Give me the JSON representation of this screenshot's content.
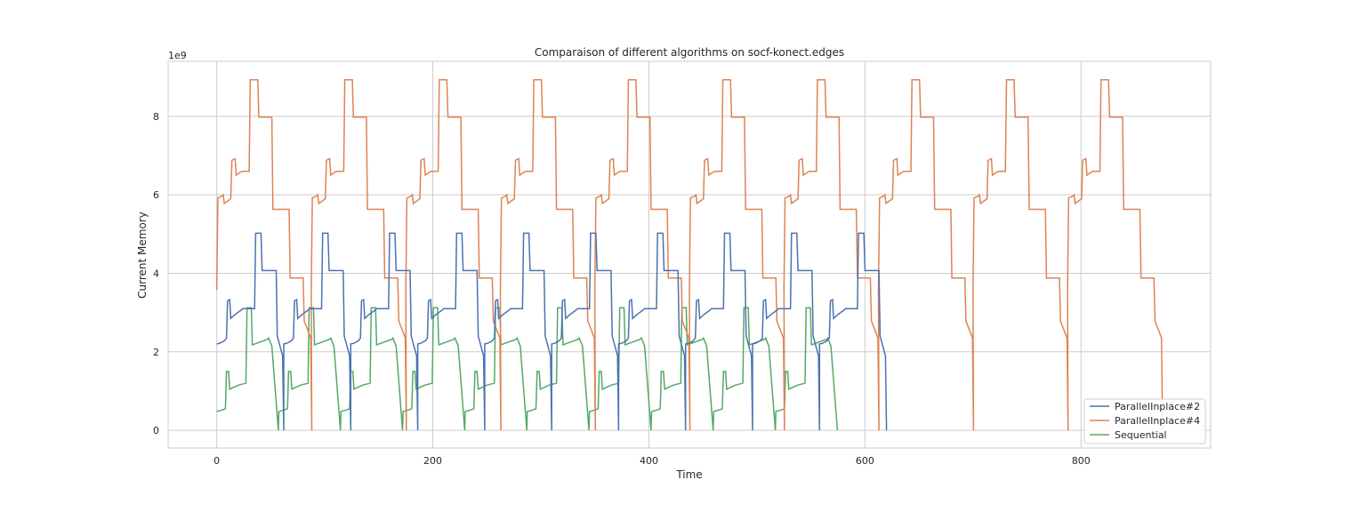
{
  "chart_data": {
    "type": "line",
    "title": "Comparaison of different algorithms on socf-konect.edges",
    "xlabel": "Time",
    "ylabel": "Current Memory",
    "y_multiplier": "1e9",
    "xlim": [
      -45,
      920
    ],
    "ylim": [
      -0.45,
      9.4
    ],
    "x_ticks": [
      0,
      200,
      400,
      600,
      800
    ],
    "y_ticks": [
      0,
      2,
      4,
      6,
      8
    ],
    "grid": true,
    "legend_position": "lower-right",
    "colors": {
      "ParallelInplace#2": "#4c72b0",
      "ParallelInplace#4": "#dd8452",
      "Sequential": "#55a868"
    },
    "series": [
      {
        "name": "ParallelInplace#2",
        "cycle_period": 62,
        "cycle_count": 10,
        "cycle_template": [
          [
            0,
            2.2
          ],
          [
            3,
            2.22
          ],
          [
            7,
            2.28
          ],
          [
            9,
            2.35
          ],
          [
            10,
            3.3
          ],
          [
            12,
            3.33
          ],
          [
            13,
            2.85
          ],
          [
            17,
            2.95
          ],
          [
            22,
            3.05
          ],
          [
            24,
            3.1
          ],
          [
            35,
            3.1
          ],
          [
            36,
            5.02
          ],
          [
            41,
            5.02
          ],
          [
            42,
            4.07
          ],
          [
            55,
            4.07
          ],
          [
            56,
            2.4
          ],
          [
            61,
            1.9
          ],
          [
            62,
            0
          ]
        ]
      },
      {
        "name": "ParallelInplace#4",
        "cycle_period": 87.5,
        "cycle_count": 10,
        "cycle_template": [
          [
            0,
            3.58
          ],
          [
            1,
            5.92
          ],
          [
            5,
            5.97
          ],
          [
            6,
            6.0
          ],
          [
            7,
            5.78
          ],
          [
            13,
            5.9
          ],
          [
            14,
            6.88
          ],
          [
            17,
            6.92
          ],
          [
            18,
            6.5
          ],
          [
            22,
            6.58
          ],
          [
            24,
            6.6
          ],
          [
            30,
            6.6
          ],
          [
            31,
            8.93
          ],
          [
            38,
            8.93
          ],
          [
            39,
            7.98
          ],
          [
            51,
            7.98
          ],
          [
            52,
            5.63
          ],
          [
            67,
            5.63
          ],
          [
            68,
            3.88
          ],
          [
            80,
            3.88
          ],
          [
            81,
            2.78
          ],
          [
            85,
            2.5
          ],
          [
            87,
            2.35
          ],
          [
            88,
            0
          ]
        ]
      },
      {
        "name": "Sequential",
        "cycle_period": 57.5,
        "cycle_count": 10,
        "cycle_template": [
          [
            0,
            0.48
          ],
          [
            5,
            0.52
          ],
          [
            8,
            0.55
          ],
          [
            9,
            1.5
          ],
          [
            11,
            1.5
          ],
          [
            12,
            1.05
          ],
          [
            20,
            1.15
          ],
          [
            27,
            1.2
          ],
          [
            28,
            3.12
          ],
          [
            32,
            3.12
          ],
          [
            33,
            2.18
          ],
          [
            40,
            2.25
          ],
          [
            47,
            2.32
          ],
          [
            48,
            2.35
          ],
          [
            51,
            2.15
          ],
          [
            57,
            0
          ]
        ]
      }
    ]
  }
}
